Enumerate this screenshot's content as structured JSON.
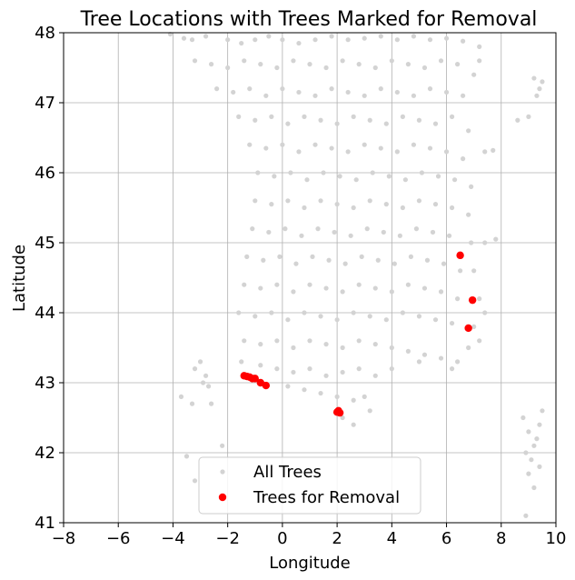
{
  "chart_data": {
    "type": "scatter",
    "title": "Tree Locations with Trees Marked for Removal",
    "xlabel": "Longitude",
    "ylabel": "Latitude",
    "xlim": [
      -8,
      10
    ],
    "ylim": [
      41,
      48
    ],
    "xticks": [
      -8,
      -6,
      -4,
      -2,
      0,
      2,
      4,
      6,
      8,
      10
    ],
    "yticks": [
      41,
      42,
      43,
      44,
      45,
      46,
      47,
      48
    ],
    "grid": true,
    "legend_position": "bottom-center",
    "series": [
      {
        "name": "All Trees",
        "color": "#d3d3d3",
        "note_points": "dense cloud; representative sample",
        "points": [
          [
            -4.1,
            47.98
          ],
          [
            -3.6,
            47.92
          ],
          [
            -3.3,
            47.9
          ],
          [
            -2.8,
            47.95
          ],
          [
            -2.0,
            47.9
          ],
          [
            -1.5,
            47.85
          ],
          [
            -1.0,
            47.9
          ],
          [
            -0.5,
            47.95
          ],
          [
            0.0,
            47.9
          ],
          [
            0.6,
            47.85
          ],
          [
            1.2,
            47.9
          ],
          [
            1.8,
            47.95
          ],
          [
            2.4,
            47.9
          ],
          [
            3.0,
            47.92
          ],
          [
            3.6,
            47.95
          ],
          [
            4.2,
            47.9
          ],
          [
            4.8,
            47.95
          ],
          [
            5.4,
            47.9
          ],
          [
            6.0,
            47.92
          ],
          [
            6.6,
            47.88
          ],
          [
            7.2,
            47.8
          ],
          [
            -3.2,
            47.6
          ],
          [
            -2.6,
            47.55
          ],
          [
            -2.0,
            47.5
          ],
          [
            -1.4,
            47.6
          ],
          [
            -0.8,
            47.55
          ],
          [
            -0.2,
            47.5
          ],
          [
            0.4,
            47.6
          ],
          [
            1.0,
            47.55
          ],
          [
            1.6,
            47.5
          ],
          [
            2.2,
            47.6
          ],
          [
            2.8,
            47.55
          ],
          [
            3.4,
            47.5
          ],
          [
            4.0,
            47.6
          ],
          [
            4.6,
            47.55
          ],
          [
            5.2,
            47.5
          ],
          [
            5.8,
            47.6
          ],
          [
            6.4,
            47.55
          ],
          [
            7.0,
            47.4
          ],
          [
            7.2,
            47.6
          ],
          [
            -2.4,
            47.2
          ],
          [
            -1.8,
            47.15
          ],
          [
            -1.2,
            47.2
          ],
          [
            -0.6,
            47.1
          ],
          [
            0.0,
            47.2
          ],
          [
            0.6,
            47.15
          ],
          [
            1.2,
            47.1
          ],
          [
            1.8,
            47.2
          ],
          [
            2.4,
            47.15
          ],
          [
            3.0,
            47.1
          ],
          [
            3.6,
            47.2
          ],
          [
            4.2,
            47.15
          ],
          [
            4.8,
            47.1
          ],
          [
            5.4,
            47.2
          ],
          [
            6.0,
            47.15
          ],
          [
            6.6,
            47.1
          ],
          [
            -1.6,
            46.8
          ],
          [
            -1.0,
            46.75
          ],
          [
            -0.4,
            46.8
          ],
          [
            0.2,
            46.7
          ],
          [
            0.8,
            46.8
          ],
          [
            1.4,
            46.75
          ],
          [
            2.0,
            46.7
          ],
          [
            2.6,
            46.8
          ],
          [
            3.2,
            46.75
          ],
          [
            3.8,
            46.7
          ],
          [
            4.4,
            46.8
          ],
          [
            5.0,
            46.75
          ],
          [
            5.6,
            46.7
          ],
          [
            6.2,
            46.8
          ],
          [
            6.8,
            46.6
          ],
          [
            -1.2,
            46.4
          ],
          [
            -0.6,
            46.35
          ],
          [
            0.0,
            46.4
          ],
          [
            0.6,
            46.3
          ],
          [
            1.2,
            46.4
          ],
          [
            1.8,
            46.35
          ],
          [
            2.4,
            46.3
          ],
          [
            3.0,
            46.4
          ],
          [
            3.6,
            46.35
          ],
          [
            4.2,
            46.3
          ],
          [
            4.8,
            46.4
          ],
          [
            5.4,
            46.35
          ],
          [
            6.0,
            46.3
          ],
          [
            6.6,
            46.2
          ],
          [
            7.4,
            46.3
          ],
          [
            7.7,
            46.32
          ],
          [
            -0.9,
            46.0
          ],
          [
            -0.3,
            45.95
          ],
          [
            0.3,
            46.0
          ],
          [
            0.9,
            45.9
          ],
          [
            1.5,
            46.0
          ],
          [
            2.1,
            45.95
          ],
          [
            2.7,
            45.9
          ],
          [
            3.3,
            46.0
          ],
          [
            3.9,
            45.95
          ],
          [
            4.5,
            45.9
          ],
          [
            5.1,
            46.0
          ],
          [
            5.7,
            45.95
          ],
          [
            6.3,
            45.9
          ],
          [
            6.9,
            45.8
          ],
          [
            -1.0,
            45.6
          ],
          [
            -0.4,
            45.55
          ],
          [
            0.2,
            45.6
          ],
          [
            0.8,
            45.5
          ],
          [
            1.4,
            45.6
          ],
          [
            2.0,
            45.55
          ],
          [
            2.6,
            45.5
          ],
          [
            3.2,
            45.6
          ],
          [
            3.8,
            45.55
          ],
          [
            4.4,
            45.5
          ],
          [
            5.0,
            45.6
          ],
          [
            5.6,
            45.55
          ],
          [
            6.2,
            45.5
          ],
          [
            6.8,
            45.4
          ],
          [
            -1.1,
            45.2
          ],
          [
            -0.5,
            45.15
          ],
          [
            0.1,
            45.2
          ],
          [
            0.7,
            45.1
          ],
          [
            1.3,
            45.2
          ],
          [
            1.9,
            45.15
          ],
          [
            2.5,
            45.1
          ],
          [
            3.1,
            45.2
          ],
          [
            3.7,
            45.15
          ],
          [
            4.3,
            45.1
          ],
          [
            4.9,
            45.2
          ],
          [
            5.5,
            45.15
          ],
          [
            6.1,
            45.1
          ],
          [
            6.9,
            45.0
          ],
          [
            7.4,
            45.0
          ],
          [
            7.8,
            45.05
          ],
          [
            -1.3,
            44.8
          ],
          [
            -0.7,
            44.75
          ],
          [
            -0.1,
            44.8
          ],
          [
            0.5,
            44.7
          ],
          [
            1.1,
            44.8
          ],
          [
            1.7,
            44.75
          ],
          [
            2.3,
            44.7
          ],
          [
            2.9,
            44.8
          ],
          [
            3.5,
            44.75
          ],
          [
            4.1,
            44.7
          ],
          [
            4.7,
            44.8
          ],
          [
            5.3,
            44.75
          ],
          [
            5.9,
            44.7
          ],
          [
            6.5,
            44.6
          ],
          [
            7.0,
            44.6
          ],
          [
            -1.4,
            44.4
          ],
          [
            -0.8,
            44.35
          ],
          [
            -0.2,
            44.4
          ],
          [
            0.4,
            44.3
          ],
          [
            1.0,
            44.4
          ],
          [
            1.6,
            44.35
          ],
          [
            2.2,
            44.3
          ],
          [
            2.8,
            44.4
          ],
          [
            3.4,
            44.35
          ],
          [
            4.0,
            44.3
          ],
          [
            4.6,
            44.4
          ],
          [
            5.2,
            44.35
          ],
          [
            5.8,
            44.3
          ],
          [
            6.4,
            44.2
          ],
          [
            7.2,
            44.2
          ],
          [
            7.4,
            44.0
          ],
          [
            -1.6,
            44.0
          ],
          [
            -1.0,
            43.95
          ],
          [
            -0.4,
            44.0
          ],
          [
            0.2,
            43.9
          ],
          [
            0.8,
            44.0
          ],
          [
            1.4,
            43.95
          ],
          [
            2.0,
            43.9
          ],
          [
            2.6,
            44.0
          ],
          [
            3.2,
            43.95
          ],
          [
            3.8,
            43.9
          ],
          [
            4.4,
            44.0
          ],
          [
            5.0,
            43.95
          ],
          [
            5.6,
            43.9
          ],
          [
            6.2,
            43.85
          ],
          [
            7.0,
            43.8
          ],
          [
            7.2,
            43.6
          ],
          [
            -1.4,
            43.6
          ],
          [
            -0.8,
            43.55
          ],
          [
            -0.2,
            43.6
          ],
          [
            0.4,
            43.5
          ],
          [
            1.0,
            43.6
          ],
          [
            1.6,
            43.55
          ],
          [
            2.2,
            43.5
          ],
          [
            2.8,
            43.6
          ],
          [
            3.4,
            43.55
          ],
          [
            4.0,
            43.5
          ],
          [
            4.6,
            43.45
          ],
          [
            5.2,
            43.4
          ],
          [
            5.8,
            43.35
          ],
          [
            6.4,
            43.3
          ],
          [
            6.8,
            43.5
          ],
          [
            -1.5,
            43.3
          ],
          [
            -0.8,
            43.25
          ],
          [
            -0.2,
            43.2
          ],
          [
            0.4,
            43.15
          ],
          [
            1.0,
            43.2
          ],
          [
            1.6,
            43.1
          ],
          [
            2.2,
            43.15
          ],
          [
            2.8,
            43.2
          ],
          [
            3.4,
            43.1
          ],
          [
            4.0,
            43.2
          ],
          [
            5.0,
            43.3
          ],
          [
            6.2,
            43.2
          ],
          [
            0.2,
            42.95
          ],
          [
            0.8,
            42.9
          ],
          [
            1.4,
            42.85
          ],
          [
            2.0,
            42.8
          ],
          [
            2.6,
            42.75
          ],
          [
            3.0,
            42.8
          ],
          [
            3.2,
            42.6
          ],
          [
            2.6,
            42.4
          ],
          [
            2.2,
            42.5
          ],
          [
            -2.9,
            43.0
          ],
          [
            -2.8,
            43.1
          ],
          [
            -2.7,
            42.95
          ],
          [
            -3.2,
            43.2
          ],
          [
            -3.0,
            43.3
          ],
          [
            -2.6,
            42.7
          ],
          [
            -3.7,
            42.8
          ],
          [
            -3.3,
            42.7
          ],
          [
            -3.5,
            41.95
          ],
          [
            -2.2,
            42.1
          ],
          [
            -3.2,
            41.6
          ],
          [
            9.2,
            47.35
          ],
          [
            9.4,
            47.2
          ],
          [
            9.5,
            47.3
          ],
          [
            9.3,
            47.1
          ],
          [
            8.6,
            46.75
          ],
          [
            9.0,
            46.8
          ],
          [
            8.8,
            42.5
          ],
          [
            9.0,
            42.3
          ],
          [
            9.2,
            42.1
          ],
          [
            8.9,
            42.0
          ],
          [
            9.1,
            41.9
          ],
          [
            9.3,
            42.2
          ],
          [
            9.5,
            42.6
          ],
          [
            9.4,
            42.4
          ],
          [
            9.0,
            41.7
          ],
          [
            8.9,
            41.1
          ],
          [
            9.2,
            41.5
          ],
          [
            9.4,
            41.8
          ]
        ]
      },
      {
        "name": "Trees for Removal",
        "color": "#ff0000",
        "points": [
          [
            -1.4,
            43.1
          ],
          [
            -1.3,
            43.09
          ],
          [
            -1.2,
            43.08
          ],
          [
            -1.1,
            43.06
          ],
          [
            -1.0,
            43.06
          ],
          [
            -0.8,
            43.0
          ],
          [
            -0.6,
            42.96
          ],
          [
            2.0,
            42.58
          ],
          [
            2.05,
            42.6
          ],
          [
            2.1,
            42.57
          ],
          [
            6.5,
            44.82
          ],
          [
            6.95,
            44.18
          ],
          [
            6.8,
            43.78
          ]
        ]
      }
    ]
  }
}
